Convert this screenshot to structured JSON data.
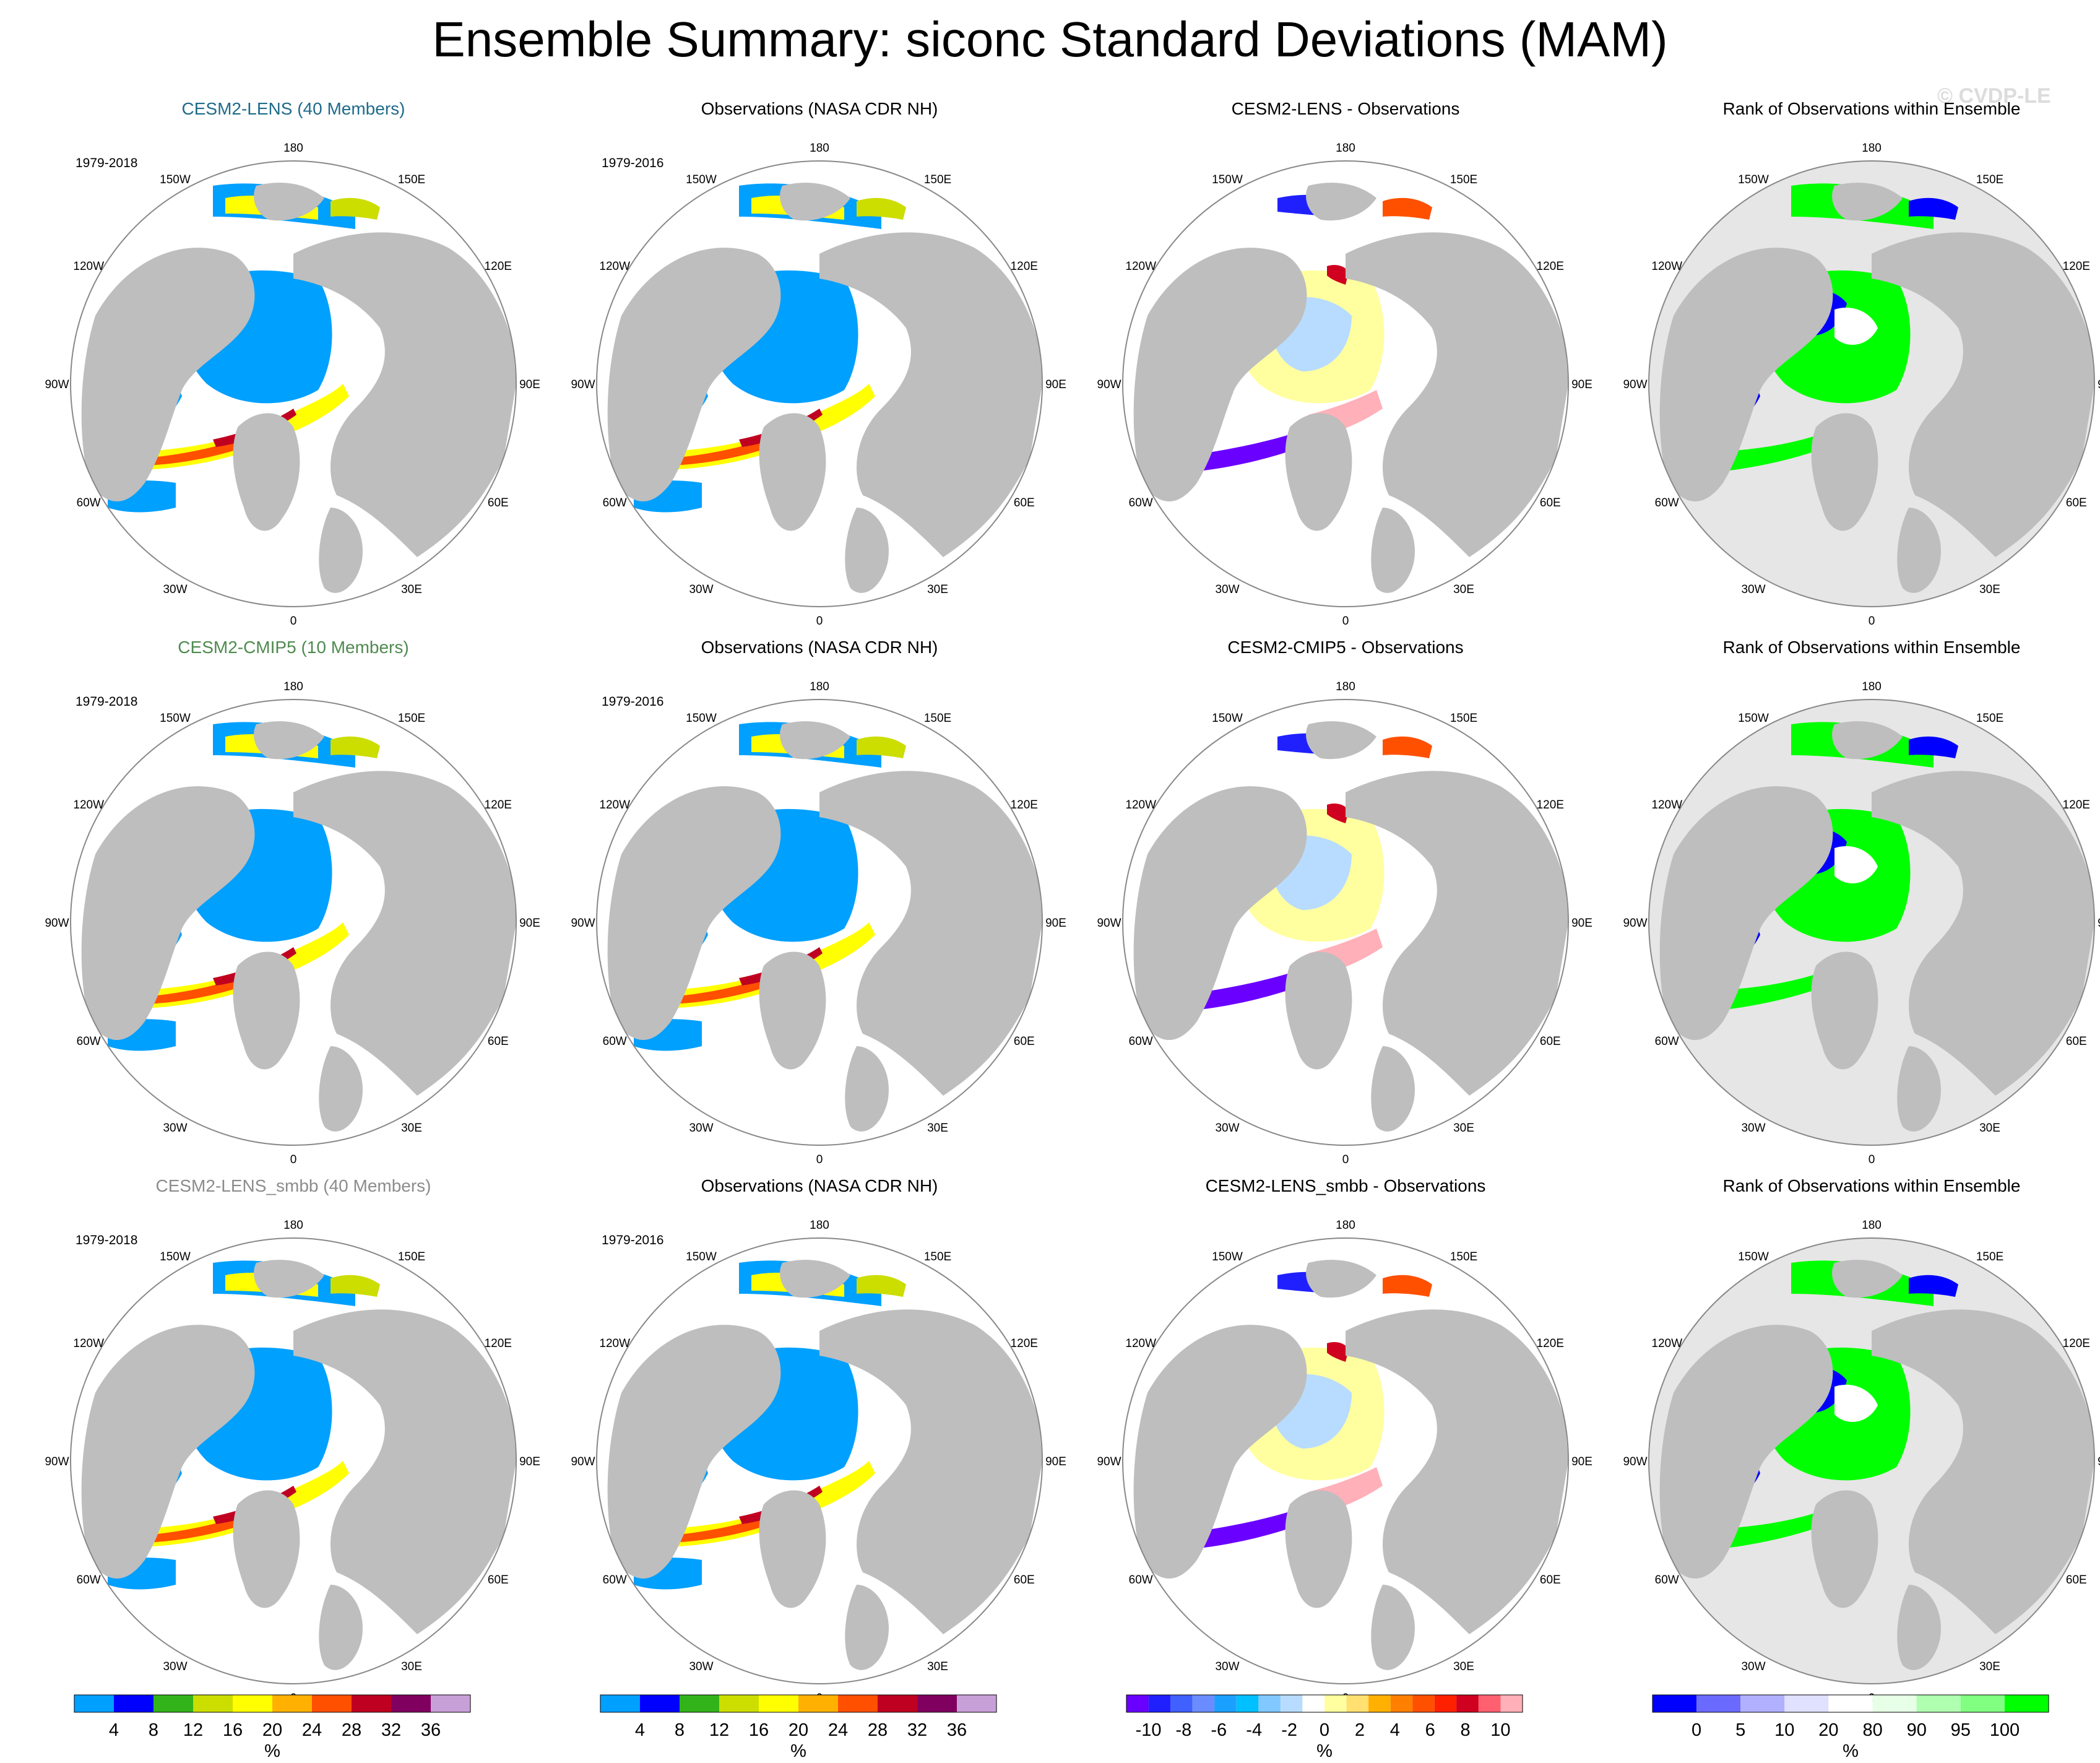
{
  "page": {
    "title": "Ensemble Summary: siconc Standard Deviations (MAM)",
    "watermark": "© CVDP-LE"
  },
  "labels": {
    "lon": [
      "180",
      "150E",
      "120E",
      "90E",
      "60E",
      "30E",
      "0",
      "30W",
      "60W",
      "90W",
      "120W",
      "150W"
    ]
  },
  "colors": {
    "land": "#bebebe",
    "ocean": "#ffffff",
    "rank_ocean": "#e6e6e6",
    "std": [
      "#00a0ff",
      "#0000ff",
      "#33b31a",
      "#ccdd00",
      "#ffff00",
      "#ffb000",
      "#ff5000",
      "#c00020",
      "#800060",
      "#c8a0d8"
    ],
    "diff": [
      "#6a00ff",
      "#2020ff",
      "#4060ff",
      "#6a8cff",
      "#1aa0ff",
      "#00c0ff",
      "#80c8ff",
      "#b8dcff",
      "#ffffff",
      "#ffffa0",
      "#ffe070",
      "#ffb000",
      "#ff8000",
      "#ff5000",
      "#ff2000",
      "#d00020",
      "#ff6070",
      "#ffb0b8"
    ],
    "rank": [
      "#0000ff",
      "#6a6aff",
      "#b0b0ff",
      "#e0e0ff",
      "#ffffff",
      "#e6ffe6",
      "#b0ffb0",
      "#80ff80",
      "#00ff00"
    ]
  },
  "rows": [
    {
      "model_title": "CESM2-LENS (40 Members)",
      "model_color": "#1f6b8a",
      "model_period": "1979-2018",
      "obs_title": "Observations (NASA CDR NH)",
      "obs_period": "1979-2016",
      "diff_title": "CESM2-LENS - Observations",
      "rank_title": "Rank of Observations within Ensemble"
    },
    {
      "model_title": "CESM2-CMIP5 (10 Members)",
      "model_color": "#4f8a4f",
      "model_period": "1979-2018",
      "obs_title": "Observations (NASA CDR NH)",
      "obs_period": "1979-2016",
      "diff_title": "CESM2-CMIP5 - Observations",
      "rank_title": "Rank of Observations within Ensemble"
    },
    {
      "model_title": "CESM2-LENS_smbb (40 Members)",
      "model_color": "#8c8c8c",
      "model_period": "1979-2018",
      "obs_title": "Observations (NASA CDR NH)",
      "obs_period": "1979-2016",
      "diff_title": "CESM2-LENS_smbb - Observations",
      "rank_title": "Rank of Observations within Ensemble"
    }
  ],
  "colorbars": {
    "std": {
      "ticks": [
        "4",
        "8",
        "12",
        "16",
        "20",
        "24",
        "28",
        "32",
        "36"
      ],
      "unit": "%"
    },
    "diff": {
      "ticks": [
        "-10",
        "-8",
        "-6",
        "-4",
        "-2",
        "0",
        "2",
        "4",
        "6",
        "8",
        "10"
      ],
      "unit": "%"
    },
    "rank": {
      "ticks": [
        "0",
        "5",
        "10",
        "20",
        "80",
        "90",
        "95",
        "100"
      ],
      "unit": "%"
    }
  }
}
